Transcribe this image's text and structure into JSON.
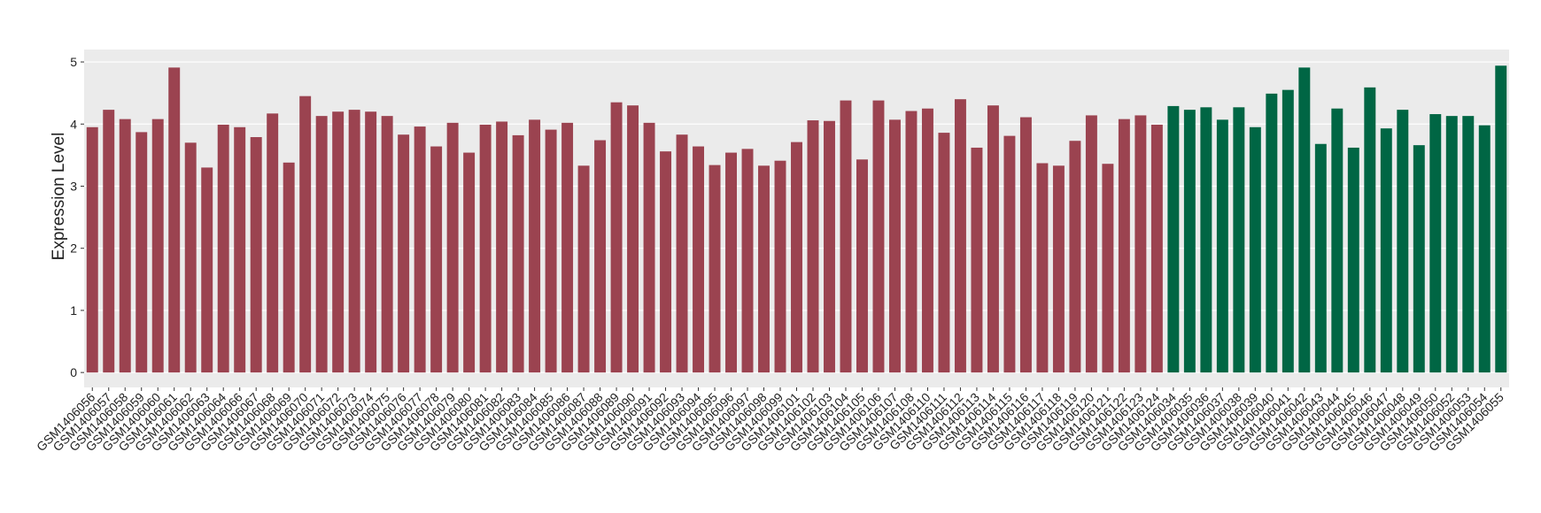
{
  "chart_data": {
    "type": "bar",
    "y_label": "Expression Level",
    "categories": [
      "GSM1406056",
      "GSM1406057",
      "GSM1406058",
      "GSM1406059",
      "GSM1406060",
      "GSM1406061",
      "GSM1406062",
      "GSM1406063",
      "GSM1406064",
      "GSM1406066",
      "GSM1406067",
      "GSM1406068",
      "GSM1406069",
      "GSM1406070",
      "GSM1406071",
      "GSM1406072",
      "GSM1406073",
      "GSM1406074",
      "GSM1406075",
      "GSM1406076",
      "GSM1406077",
      "GSM1406078",
      "GSM1406079",
      "GSM1406080",
      "GSM1406081",
      "GSM1406082",
      "GSM1406083",
      "GSM1406084",
      "GSM1406085",
      "GSM1406086",
      "GSM1406087",
      "GSM1406088",
      "GSM1406089",
      "GSM1406090",
      "GSM1406091",
      "GSM1406092",
      "GSM1406093",
      "GSM1406094",
      "GSM1406095",
      "GSM1406096",
      "GSM1406097",
      "GSM1406098",
      "GSM1406099",
      "GSM1406101",
      "GSM1406102",
      "GSM1406103",
      "GSM1406104",
      "GSM1406105",
      "GSM1406106",
      "GSM1406107",
      "GSM1406108",
      "GSM1406110",
      "GSM1406111",
      "GSM1406112",
      "GSM1406113",
      "GSM1406114",
      "GSM1406115",
      "GSM1406116",
      "GSM1406117",
      "GSM1406118",
      "GSM1406119",
      "GSM1406120",
      "GSM1406121",
      "GSM1406122",
      "GSM1406123",
      "GSM1406124",
      "GSM1406034",
      "GSM1406035",
      "GSM1406036",
      "GSM1406037",
      "GSM1406038",
      "GSM1406039",
      "GSM1406040",
      "GSM1406041",
      "GSM1406042",
      "GSM1406043",
      "GSM1406044",
      "GSM1406045",
      "GSM1406046",
      "GSM1406047",
      "GSM1406048",
      "GSM1406049",
      "GSM1406050",
      "GSM1406052",
      "GSM1406053",
      "GSM1406054",
      "GSM1406055"
    ],
    "values": [
      3.95,
      4.23,
      4.08,
      3.87,
      4.08,
      4.91,
      3.7,
      3.3,
      3.99,
      3.95,
      3.79,
      4.17,
      3.38,
      4.45,
      4.13,
      4.2,
      4.23,
      4.2,
      4.13,
      3.83,
      3.96,
      3.64,
      4.02,
      3.54,
      3.99,
      4.04,
      3.82,
      4.07,
      3.91,
      4.02,
      3.33,
      3.74,
      4.35,
      4.3,
      4.02,
      3.56,
      3.83,
      3.64,
      3.34,
      3.54,
      3.6,
      3.33,
      3.41,
      3.71,
      4.06,
      4.05,
      4.38,
      3.43,
      4.38,
      4.07,
      4.21,
      4.25,
      3.86,
      4.4,
      3.62,
      4.3,
      3.81,
      4.11,
      3.37,
      3.33,
      3.73,
      4.14,
      3.36,
      4.08,
      4.14,
      3.99,
      4.29,
      4.23,
      4.27,
      4.07,
      4.27,
      3.95,
      4.49,
      4.55,
      4.91,
      3.68,
      4.25,
      3.62,
      4.59,
      3.93,
      4.23,
      3.66,
      4.16,
      4.13,
      4.13,
      3.98,
      4.94
    ],
    "bar_colors": [
      "#9b4350",
      "#9b4350",
      "#9b4350",
      "#9b4350",
      "#9b4350",
      "#9b4350",
      "#9b4350",
      "#9b4350",
      "#9b4350",
      "#9b4350",
      "#9b4350",
      "#9b4350",
      "#9b4350",
      "#9b4350",
      "#9b4350",
      "#9b4350",
      "#9b4350",
      "#9b4350",
      "#9b4350",
      "#9b4350",
      "#9b4350",
      "#9b4350",
      "#9b4350",
      "#9b4350",
      "#9b4350",
      "#9b4350",
      "#9b4350",
      "#9b4350",
      "#9b4350",
      "#9b4350",
      "#9b4350",
      "#9b4350",
      "#9b4350",
      "#9b4350",
      "#9b4350",
      "#9b4350",
      "#9b4350",
      "#9b4350",
      "#9b4350",
      "#9b4350",
      "#9b4350",
      "#9b4350",
      "#9b4350",
      "#9b4350",
      "#9b4350",
      "#9b4350",
      "#9b4350",
      "#9b4350",
      "#9b4350",
      "#9b4350",
      "#9b4350",
      "#9b4350",
      "#9b4350",
      "#9b4350",
      "#9b4350",
      "#9b4350",
      "#9b4350",
      "#9b4350",
      "#9b4350",
      "#9b4350",
      "#9b4350",
      "#9b4350",
      "#9b4350",
      "#9b4350",
      "#9b4350",
      "#9b4350",
      "#006644",
      "#006644",
      "#006644",
      "#006644",
      "#006644",
      "#006644",
      "#006644",
      "#006644",
      "#006644",
      "#006644",
      "#006644",
      "#006644",
      "#006644",
      "#006644",
      "#006644",
      "#006644",
      "#006644",
      "#006644",
      "#006644",
      "#006644",
      "#006644"
    ],
    "ylim": [
      -0.24,
      5.2
    ],
    "yticks": [
      0,
      1,
      2,
      3,
      4,
      5
    ],
    "grid": true,
    "panel_color": "#ebebeb"
  }
}
